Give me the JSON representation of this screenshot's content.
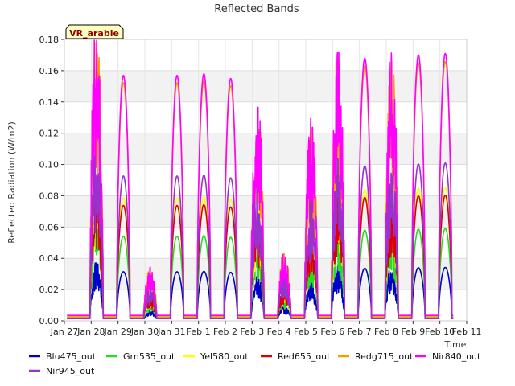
{
  "chart_data": {
    "type": "line",
    "title": "Reflected Bands",
    "xlabel": "Time",
    "ylabel": "Reflected Radiation (W/m2)",
    "badge": "VR_arable",
    "ylim": [
      0,
      0.18
    ],
    "xlim": [
      0,
      15
    ],
    "y_ticks": [
      "0.00",
      "0.02",
      "0.04",
      "0.06",
      "0.08",
      "0.10",
      "0.12",
      "0.14",
      "0.16",
      "0.18"
    ],
    "x_ticks": [
      "Jan 27",
      "Jan 28",
      "Jan 29",
      "Jan 30",
      "Jan 31",
      "Feb 1",
      "Feb 2",
      "Feb 3",
      "Feb 4",
      "Feb 5",
      "Feb 6",
      "Feb 7",
      "Feb 8",
      "Feb 9",
      "Feb 10",
      "Feb 11"
    ],
    "grid": true,
    "legend_position": "bottom",
    "day_peaks": [
      {
        "day": 1,
        "peak": 0.172,
        "noisy": true
      },
      {
        "day": 2,
        "peak": 0.157,
        "noisy": false
      },
      {
        "day": 3,
        "peak": 0.03,
        "noisy": true
      },
      {
        "day": 4,
        "peak": 0.157,
        "noisy": false
      },
      {
        "day": 5,
        "peak": 0.158,
        "noisy": false
      },
      {
        "day": 6,
        "peak": 0.155,
        "noisy": false
      },
      {
        "day": 7,
        "peak": 0.128,
        "noisy": true
      },
      {
        "day": 8,
        "peak": 0.04,
        "noisy": true
      },
      {
        "day": 9,
        "peak": 0.115,
        "noisy": true
      },
      {
        "day": 10,
        "peak": 0.16,
        "noisy": true
      },
      {
        "day": 11,
        "peak": 0.168,
        "noisy": false
      },
      {
        "day": 12,
        "peak": 0.158,
        "noisy": true
      },
      {
        "day": 13,
        "peak": 0.17,
        "noisy": false
      },
      {
        "day": 14,
        "peak": 0.171,
        "noisy": false
      }
    ],
    "series": [
      {
        "name": "Blu475_out",
        "color": "#0000cc",
        "ratio": 0.2
      },
      {
        "name": "Grn535_out",
        "color": "#22dd22",
        "ratio": 0.345
      },
      {
        "name": "Yel580_out",
        "color": "#ffff00",
        "ratio": 0.5
      },
      {
        "name": "Red655_out",
        "color": "#dd0000",
        "ratio": 0.47
      },
      {
        "name": "Redg715_out",
        "color": "#ff9900",
        "ratio": 0.97
      },
      {
        "name": "Nir840_out",
        "color": "#ff00ff",
        "ratio": 1.0
      },
      {
        "name": "Nir945_out",
        "color": "#9933cc",
        "ratio": 0.59
      }
    ]
  }
}
